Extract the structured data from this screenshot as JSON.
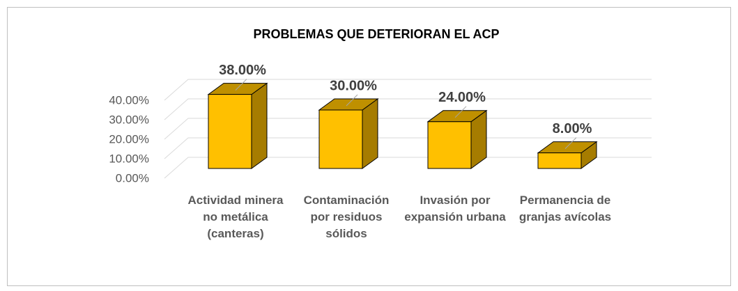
{
  "chart_data": {
    "type": "bar3d",
    "title": "PROBLEMAS QUE DETERIORAN EL ACP",
    "categories": [
      "Actividad minera no metálica (canteras)",
      "Contaminación por residuos sólidos",
      "Invasión por expansión urbana",
      "Permanencia de granjas avícolas"
    ],
    "values": [
      38,
      30,
      24,
      8
    ],
    "value_labels": [
      "38.00%",
      "30.00%",
      "24.00%",
      "8.00%"
    ],
    "color": "#ffc000",
    "ylim": [
      0,
      40
    ],
    "yticks": [
      {
        "value": 0,
        "label": "0.00%"
      },
      {
        "value": 10,
        "label": "10.00%"
      },
      {
        "value": 20,
        "label": "20.00%"
      },
      {
        "value": 30,
        "label": "30.00%"
      },
      {
        "value": 40,
        "label": "40.00%"
      }
    ],
    "grid": true
  }
}
